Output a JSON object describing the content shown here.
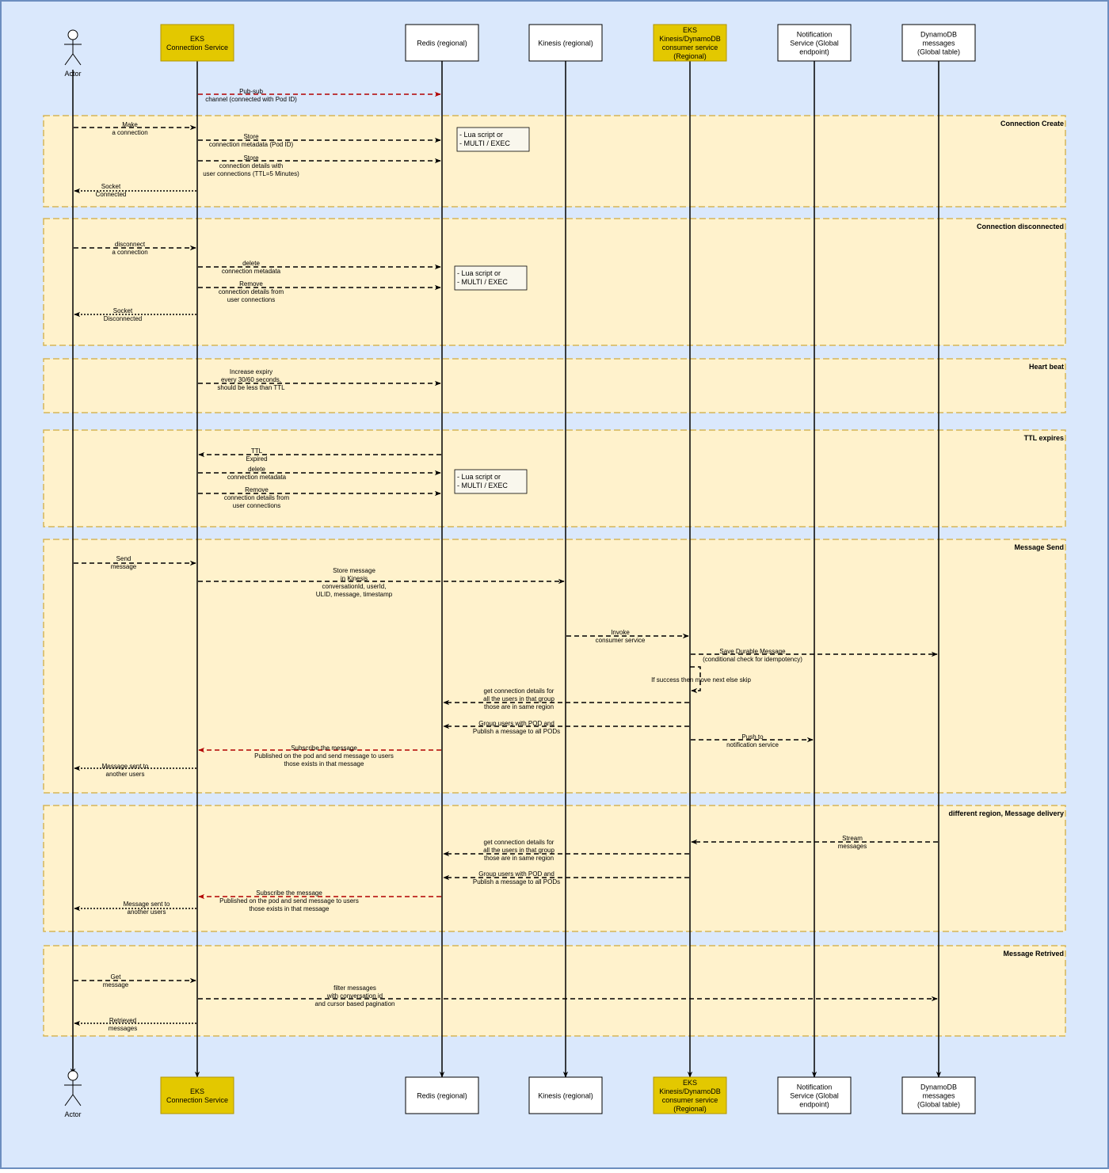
{
  "colors": {
    "background": "#dae8fc",
    "frame_border": "#6c8ebf",
    "fragment_fill": "#fff2cc",
    "fragment_border": "#d6b656",
    "eks_fill": "#e3c800",
    "eks_border": "#b09500",
    "box_fill": "#ffffff",
    "line": "#000000",
    "pubsub": "#b20000",
    "note_fill": "#f9f7ed"
  },
  "participants": [
    {
      "id": "actor",
      "type": "actor",
      "label": "Actor"
    },
    {
      "id": "eks_conn",
      "type": "eks",
      "lines": [
        "EKS",
        "Connection Service"
      ]
    },
    {
      "id": "redis",
      "type": "box",
      "lines": [
        "Redis (regional)"
      ]
    },
    {
      "id": "kinesis",
      "type": "box",
      "lines": [
        "Kinesis (regional)"
      ]
    },
    {
      "id": "eks_consumer",
      "type": "eks",
      "lines": [
        "EKS",
        "Kinesis/DynamoDB",
        "consumer service",
        "(Regional)"
      ]
    },
    {
      "id": "notification",
      "type": "box",
      "lines": [
        "Notification",
        "Service (Global",
        "endpoint)"
      ]
    },
    {
      "id": "dynamodb",
      "type": "box",
      "lines": [
        "DynamoDB",
        "messages",
        "(Global table)"
      ]
    }
  ],
  "fragments": [
    {
      "title": "Connection Create"
    },
    {
      "title": "Connection disconnected"
    },
    {
      "title": "Heart beat"
    },
    {
      "title": "TTL expires"
    },
    {
      "title": "Message Send"
    },
    {
      "title": "different region, Message delivery"
    },
    {
      "title": "Message Retrived"
    }
  ],
  "notes": [
    {
      "lines": [
        "- Lua script or",
        "- MULTI / EXEC"
      ]
    },
    {
      "lines": [
        "- Lua script or",
        "- MULTI / EXEC"
      ]
    },
    {
      "lines": [
        "- Lua script or",
        "- MULTI / EXEC"
      ]
    }
  ],
  "messages": [
    {
      "from": "eks_conn",
      "to": "redis",
      "style": "pubsub",
      "lines": [
        "Pub-sub",
        "channel (connected with Pod ID)"
      ]
    },
    {
      "from": "actor",
      "to": "eks_conn",
      "style": "dashed",
      "lines": [
        "Make",
        "a connection"
      ]
    },
    {
      "from": "eks_conn",
      "to": "redis",
      "style": "dashed",
      "lines": [
        "Store",
        "connection metadata (Pod ID)"
      ]
    },
    {
      "from": "eks_conn",
      "to": "redis",
      "style": "dashed",
      "lines": [
        "Store",
        "connection details with",
        "user connections (TTL=5 Minutes)"
      ]
    },
    {
      "from": "eks_conn",
      "to": "actor",
      "style": "dotted",
      "lines": [
        "Socket",
        "Connected"
      ]
    },
    {
      "from": "actor",
      "to": "eks_conn",
      "style": "dashed",
      "lines": [
        "disconnect",
        "a connection"
      ]
    },
    {
      "from": "eks_conn",
      "to": "redis",
      "style": "dashed",
      "lines": [
        "delete",
        "connection metadata"
      ]
    },
    {
      "from": "eks_conn",
      "to": "redis",
      "style": "dashed",
      "lines": [
        "Remove",
        "connection details from",
        "user connections"
      ]
    },
    {
      "from": "eks_conn",
      "to": "actor",
      "style": "dotted",
      "lines": [
        "Socket",
        "Disconnected"
      ]
    },
    {
      "from": "eks_conn",
      "to": "redis",
      "style": "dashed",
      "lines": [
        "Increase expiry",
        "every 30/60 seconds,",
        "should be less than TTL"
      ]
    },
    {
      "from": "redis",
      "to": "eks_conn",
      "style": "dashed",
      "lines": [
        "TTL",
        "Expired"
      ]
    },
    {
      "from": "eks_conn",
      "to": "redis",
      "style": "dashed",
      "lines": [
        "delete",
        "connection metadata"
      ]
    },
    {
      "from": "eks_conn",
      "to": "redis",
      "style": "dashed",
      "lines": [
        "Remove",
        "connection details from",
        "user connections"
      ]
    },
    {
      "from": "actor",
      "to": "eks_conn",
      "style": "dashed",
      "lines": [
        "Send",
        "message"
      ]
    },
    {
      "from": "eks_conn",
      "to": "kinesis",
      "style": "dashed",
      "lines": [
        "Store message",
        "in Kinesis",
        "conversationId, userId,",
        "ULID, message, timestamp"
      ]
    },
    {
      "from": "kinesis",
      "to": "eks_consumer",
      "style": "dashed",
      "lines": [
        "Invoke",
        "consumer service"
      ]
    },
    {
      "from": "eks_consumer",
      "to": "dynamodb",
      "style": "dashed",
      "lines": [
        "Save Durable Message",
        "(conditional check for idempotency)"
      ]
    },
    {
      "from": "eks_consumer",
      "to": "eks_consumer",
      "style": "dashed",
      "lines": [
        "If success then move next else skip"
      ]
    },
    {
      "from": "eks_consumer",
      "to": "redis",
      "style": "dashed",
      "lines": [
        "get connection details for",
        "all the users in that group",
        "those are in same region"
      ]
    },
    {
      "from": "eks_consumer",
      "to": "redis",
      "style": "dashed",
      "lines": [
        "Group users with POD and",
        "Publish a message to all PODs"
      ]
    },
    {
      "from": "eks_consumer",
      "to": "notification",
      "style": "dashed",
      "lines": [
        "Push to",
        "notification service"
      ]
    },
    {
      "from": "redis",
      "to": "eks_conn",
      "style": "pubsub",
      "lines": [
        "Subscribe the message",
        "Published on the pod and send message to users",
        "those exists in that message"
      ]
    },
    {
      "from": "eks_conn",
      "to": "actor",
      "style": "dotted",
      "lines": [
        "Message sent to",
        "another users"
      ]
    },
    {
      "from": "dynamodb",
      "to": "eks_consumer",
      "style": "dashed",
      "lines": [
        "Stream",
        "messages"
      ]
    },
    {
      "from": "eks_consumer",
      "to": "redis",
      "style": "dashed",
      "lines": [
        "get connection details for",
        "all the users in that group",
        "those are in same region"
      ]
    },
    {
      "from": "eks_consumer",
      "to": "redis",
      "style": "dashed",
      "lines": [
        "Group users with POD and",
        "Publish a message to all PODs"
      ]
    },
    {
      "from": "redis",
      "to": "eks_conn",
      "style": "pubsub",
      "lines": [
        "Subscribe the message",
        "Published on the pod and send message to users",
        "those exists in that message"
      ]
    },
    {
      "from": "eks_conn",
      "to": "actor",
      "style": "dotted",
      "lines": [
        "Message sent to",
        "another users"
      ]
    },
    {
      "from": "actor",
      "to": "eks_conn",
      "style": "dashed",
      "lines": [
        "Get",
        "message"
      ]
    },
    {
      "from": "eks_conn",
      "to": "dynamodb",
      "style": "dashed",
      "lines": [
        "filter messages",
        "with conversation id",
        "and cursor based pagination"
      ]
    },
    {
      "from": "eks_conn",
      "to": "actor",
      "style": "dotted",
      "lines": [
        "Retrieved",
        "messages"
      ]
    }
  ]
}
